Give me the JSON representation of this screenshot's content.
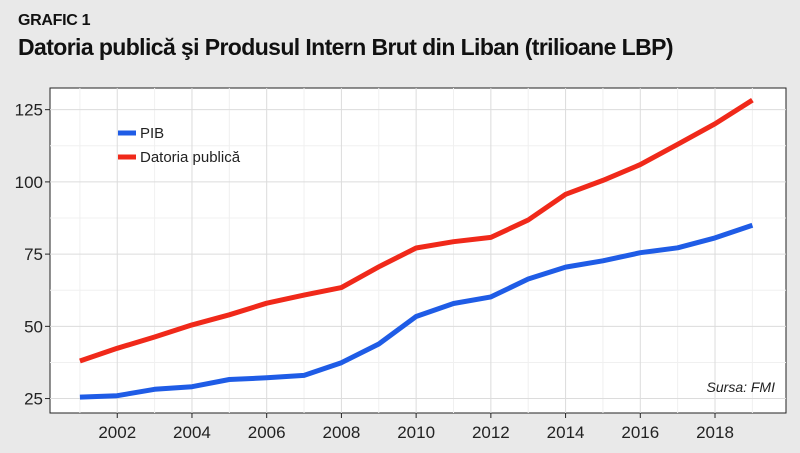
{
  "kicker": "GRAFIC 1",
  "title": "Datoria publică şi Produsul Intern Brut din Liban (trilioane LBP)",
  "source": "Sursa: FMI",
  "chart_data": {
    "type": "line",
    "title": "Datoria publică şi Produsul Intern Brut din Liban (trilioane LBP)",
    "x": [
      2001,
      2002,
      2003,
      2004,
      2005,
      2006,
      2007,
      2008,
      2009,
      2010,
      2011,
      2012,
      2013,
      2014,
      2015,
      2016,
      2017,
      2018,
      2019
    ],
    "series": [
      {
        "name": "PIB",
        "color": "#1f5ce6",
        "values": [
          25.5,
          26,
          28.2,
          29.1,
          31.6,
          32.2,
          33,
          37.4,
          43.9,
          53.4,
          57.9,
          60.2,
          66.4,
          70.5,
          72.7,
          75.5,
          77.2,
          80.6,
          85
        ]
      },
      {
        "name": "Datoria publică",
        "color": "#f0291a",
        "values": [
          38,
          42.4,
          46.3,
          50.5,
          54,
          58,
          60.8,
          63.4,
          70.6,
          77.1,
          79.3,
          80.8,
          86.8,
          95.7,
          100.5,
          106,
          113,
          120.1,
          128.3
        ]
      }
    ],
    "xticks": [
      2002,
      2004,
      2006,
      2008,
      2010,
      2012,
      2014,
      2016,
      2018
    ],
    "yticks": [
      25,
      50,
      75,
      100,
      125
    ],
    "xlim": [
      2000.2,
      2019.9
    ],
    "ylim": [
      20,
      132.5
    ],
    "grid": true,
    "legend": "top-left"
  }
}
